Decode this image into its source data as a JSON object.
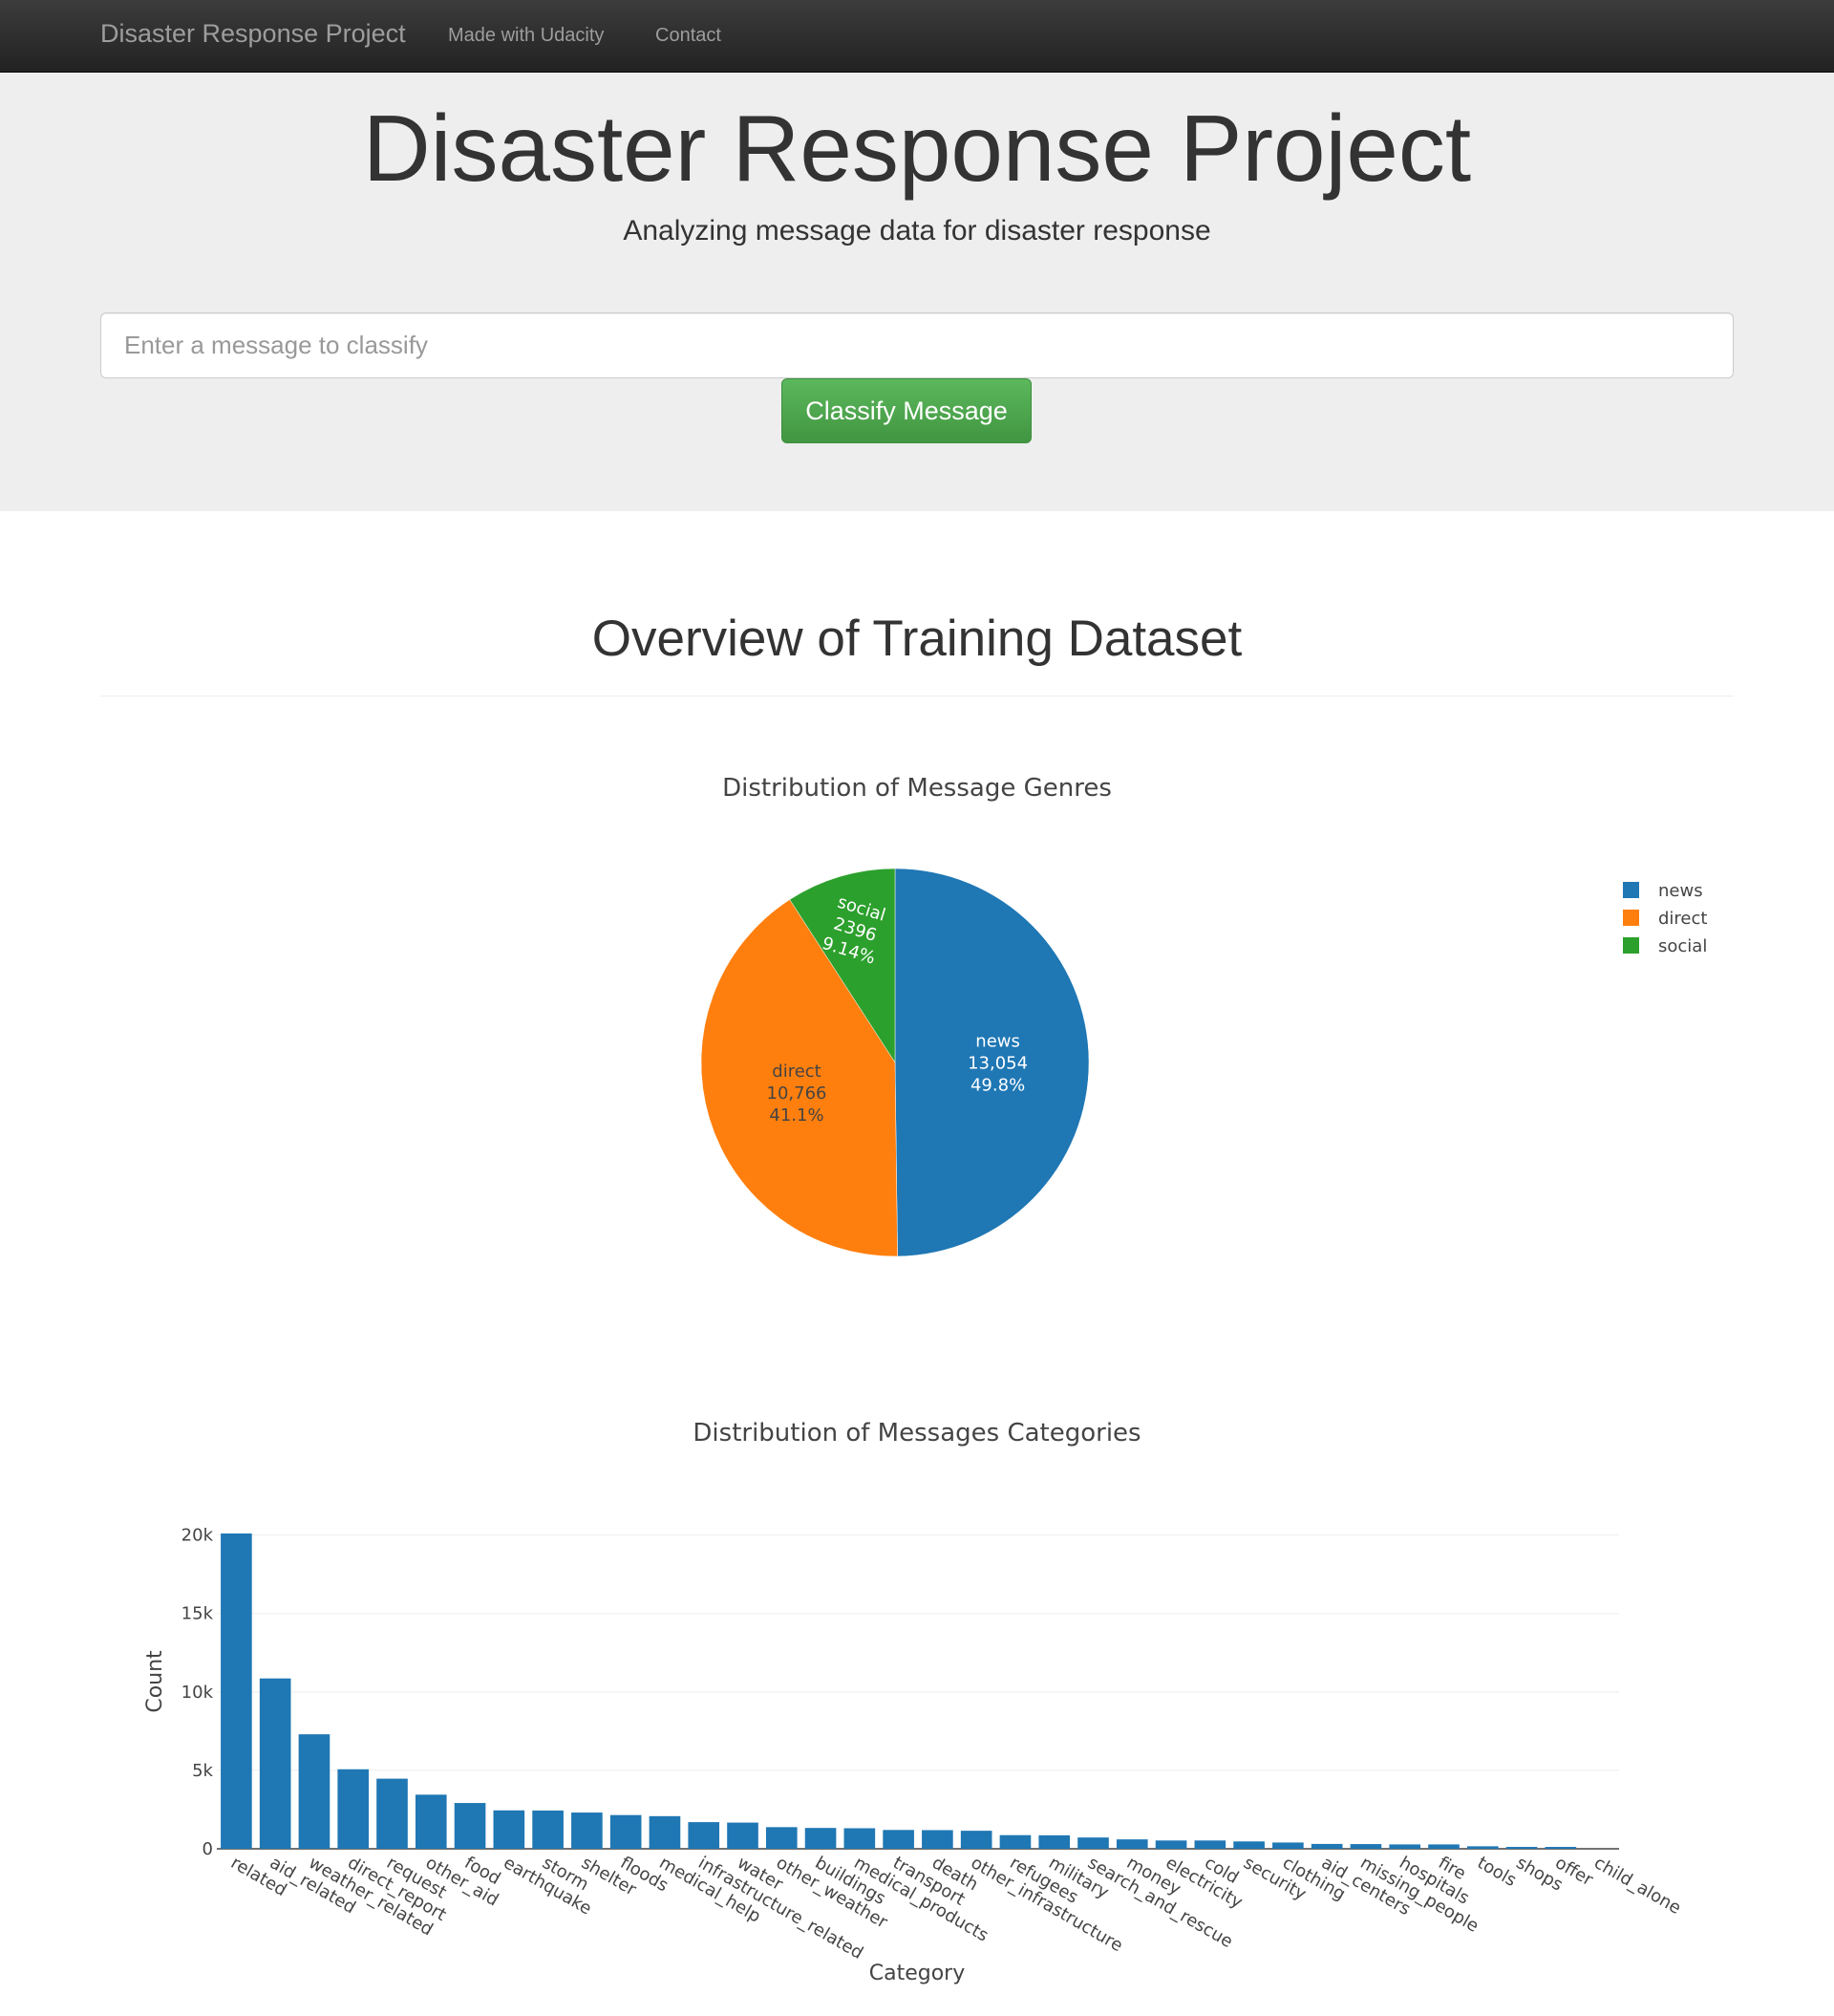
{
  "navbar": {
    "brand": "Disaster Response Project",
    "links": [
      "Made with Udacity",
      "Contact"
    ]
  },
  "jumbotron": {
    "title": "Disaster Response Project",
    "subtitle": "Analyzing message data for disaster response",
    "input_placeholder": "Enter a message to classify",
    "button_label": "Classify Message"
  },
  "overview": {
    "title": "Overview of Training Dataset"
  },
  "colors": {
    "blue": "#1f77b4",
    "orange": "#ff7f0e",
    "green": "#2ca02c",
    "button_green": "#5cb85c"
  },
  "chart_data": [
    {
      "type": "pie",
      "title": "Distribution of Message Genres",
      "labels": [
        "news",
        "direct",
        "social"
      ],
      "values": [
        13054,
        10766,
        2396
      ],
      "value_labels": [
        "13,054",
        "10,766",
        "2396"
      ],
      "percent_labels": [
        "49.8%",
        "41.1%",
        "9.14%"
      ],
      "colors": [
        "#1f77b4",
        "#ff7f0e",
        "#2ca02c"
      ],
      "legend": "top-right"
    },
    {
      "type": "bar",
      "title": "Distribution of Messages Categories",
      "xlabel": "Category",
      "ylabel": "Count",
      "ylim": [
        0,
        20100
      ],
      "yticks": [
        0,
        5000,
        10000,
        15000,
        20000
      ],
      "ytick_labels": [
        "0",
        "5k",
        "10k",
        "15k",
        "20k"
      ],
      "grid": true,
      "color": "#1f77b4",
      "categories": [
        "related",
        "aid_related",
        "weather_related",
        "direct_report",
        "request",
        "other_aid",
        "food",
        "earthquake",
        "storm",
        "shelter",
        "floods",
        "medical_help",
        "infrastructure_related",
        "water",
        "other_weather",
        "buildings",
        "medical_products",
        "transport",
        "death",
        "other_infrastructure",
        "refugees",
        "military",
        "search_and_rescue",
        "money",
        "electricity",
        "cold",
        "security",
        "clothing",
        "aid_centers",
        "missing_people",
        "hospitals",
        "fire",
        "tools",
        "shops",
        "offer",
        "child_alone"
      ],
      "values": [
        20100,
        10860,
        7300,
        5070,
        4470,
        3450,
        2920,
        2450,
        2440,
        2310,
        2150,
        2080,
        1700,
        1670,
        1380,
        1330,
        1310,
        1200,
        1190,
        1150,
        870,
        860,
        720,
        600,
        530,
        530,
        470,
        400,
        310,
        300,
        280,
        280,
        160,
        120,
        120,
        0
      ]
    }
  ]
}
